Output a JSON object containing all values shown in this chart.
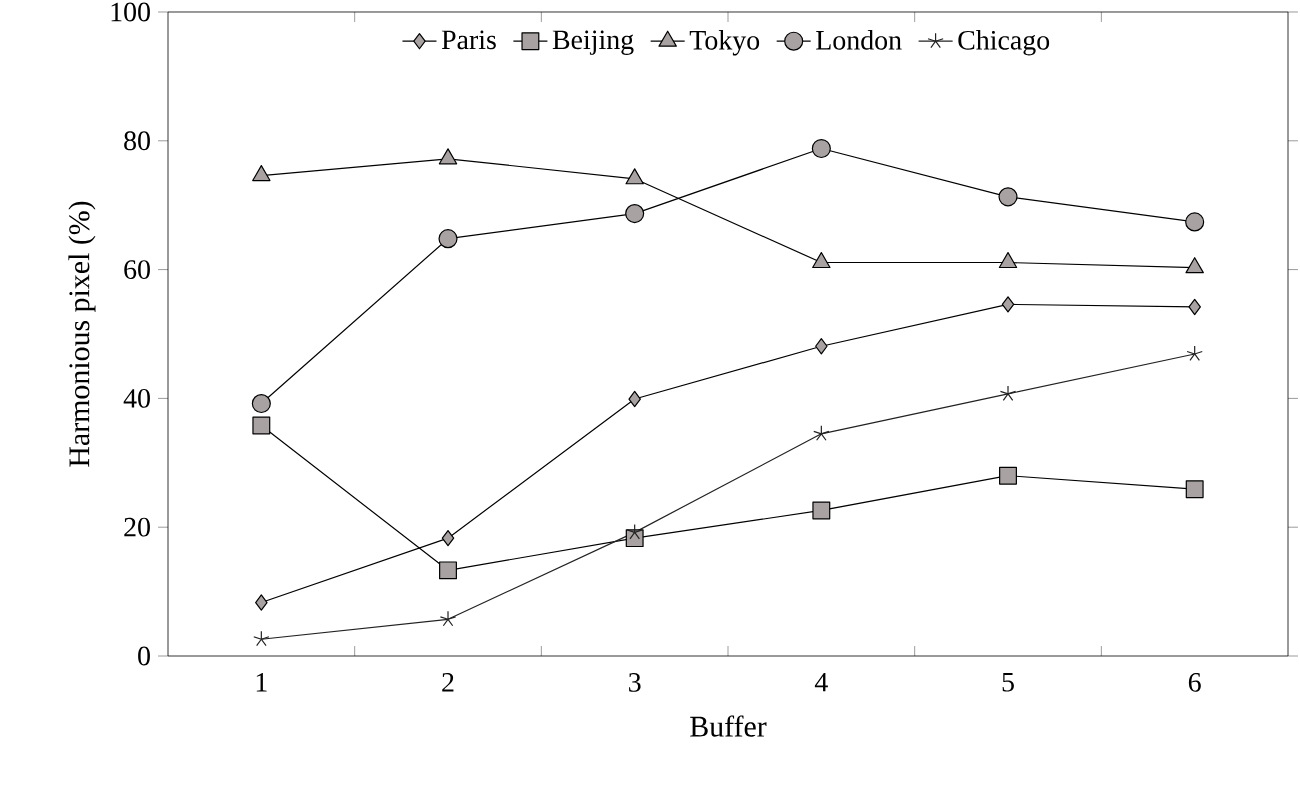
{
  "chart_data": {
    "type": "line",
    "xlabel": "Buffer",
    "ylabel": "Harmonious pixel (%)",
    "categories": [
      "1",
      "2",
      "3",
      "4",
      "5",
      "6"
    ],
    "series": [
      {
        "name": "Paris",
        "color": "#a8a2a2",
        "marker": "diamond",
        "values": [
          8.3,
          18.3,
          39.9,
          48.1,
          54.6,
          54.2
        ]
      },
      {
        "name": "Beijing",
        "color": "#a8a2a2",
        "marker": "square",
        "values": [
          35.8,
          13.3,
          18.3,
          22.6,
          28.0,
          25.9
        ]
      },
      {
        "name": "Tokyo",
        "color": "#a8a2a2",
        "marker": "triangle",
        "values": [
          74.6,
          77.2,
          74.1,
          61.1,
          61.1,
          60.3
        ]
      },
      {
        "name": "London",
        "color": "#a8a2a2",
        "marker": "circle",
        "values": [
          39.2,
          64.8,
          68.7,
          78.8,
          71.3,
          67.4
        ]
      },
      {
        "name": "Chicago",
        "color": "#222222",
        "marker": "cross",
        "values": [
          2.6,
          5.7,
          19.2,
          34.5,
          40.7,
          46.9
        ]
      }
    ],
    "ylim": [
      0,
      100
    ],
    "yticks": [
      0,
      20,
      40,
      60,
      80,
      100
    ],
    "grid": false,
    "legend": "top",
    "line_style": "solid"
  }
}
